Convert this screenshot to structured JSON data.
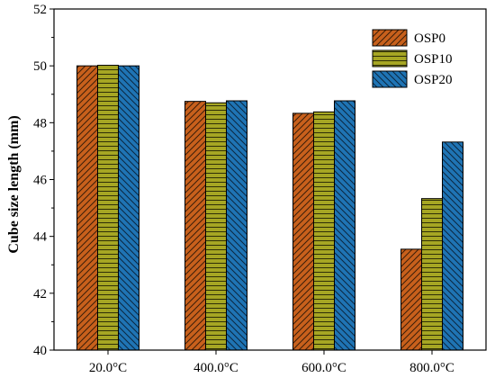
{
  "chart_data": {
    "type": "bar",
    "title": "",
    "xlabel": "",
    "ylabel": "Cube size length (mm)",
    "categories": [
      "20.0°C",
      "400.0°C",
      "600.0°C",
      "800.0°C"
    ],
    "ylim": [
      40,
      52
    ],
    "yticks": [
      40,
      42,
      44,
      46,
      48,
      50,
      52
    ],
    "grid": false,
    "legend_position": "top-right",
    "series": [
      {
        "name": "OSP0",
        "values": [
          50.0,
          48.75,
          48.33,
          43.55
        ],
        "color": "#c8601c",
        "pattern": "diagonal-hatch"
      },
      {
        "name": "OSP10",
        "values": [
          50.02,
          48.7,
          48.38,
          45.33
        ],
        "color": "#a6a623",
        "pattern": "horizontal-lines"
      },
      {
        "name": "OSP20",
        "values": [
          50.0,
          48.77,
          48.77,
          47.32
        ],
        "color": "#1f74b4",
        "pattern": "diagonal-hatch-reverse"
      }
    ]
  }
}
